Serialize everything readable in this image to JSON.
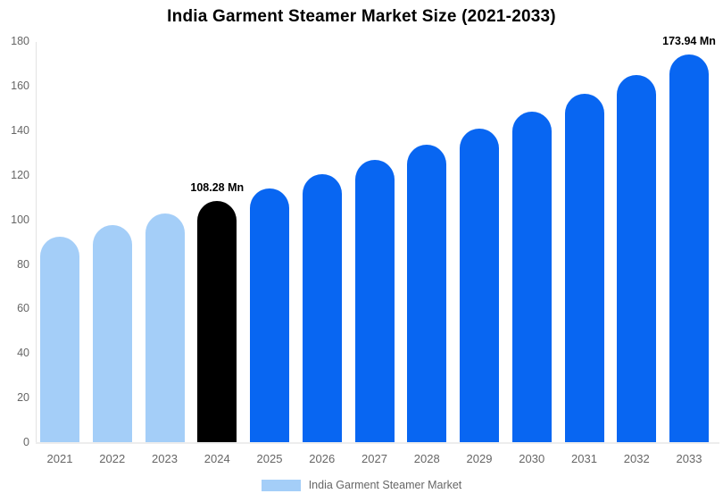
{
  "chart_data": {
    "type": "bar",
    "title": "India Garment Steamer Market Size (2021-2033)",
    "xlabel": "",
    "ylabel": "",
    "unit": "Mn",
    "ylim": [
      0,
      180
    ],
    "yticks": [
      0,
      20,
      40,
      60,
      80,
      100,
      120,
      140,
      160,
      180
    ],
    "grid": false,
    "categories": [
      "2021",
      "2022",
      "2023",
      "2024",
      "2025",
      "2026",
      "2027",
      "2028",
      "2029",
      "2030",
      "2031",
      "2032",
      "2033"
    ],
    "values": [
      92.4,
      97.4,
      102.7,
      108.28,
      114.1,
      120.3,
      126.8,
      133.7,
      140.9,
      148.5,
      156.6,
      165.0,
      173.94
    ],
    "bar_colors": [
      "#A4CEF8",
      "#A4CEF8",
      "#A4CEF8",
      "#000000",
      "#0866F2",
      "#0866F2",
      "#0866F2",
      "#0866F2",
      "#0866F2",
      "#0866F2",
      "#0866F2",
      "#0866F2",
      "#0866F2"
    ],
    "data_labels": [
      {
        "category": "2024",
        "index": 3,
        "text": "108.28 Mn"
      },
      {
        "category": "2033",
        "index": 12,
        "text": "173.94 Mn"
      }
    ],
    "legend": {
      "label": "India Garment Steamer Market",
      "swatch_color": "#A4CEF8",
      "position": "bottom"
    },
    "colors": {
      "historical_bar": "#A4CEF8",
      "base_year_bar": "#000000",
      "forecast_bar": "#0866F2",
      "axis_text": "#666666",
      "axis_line": "#e3e3e3",
      "title_text": "#000000"
    }
  }
}
